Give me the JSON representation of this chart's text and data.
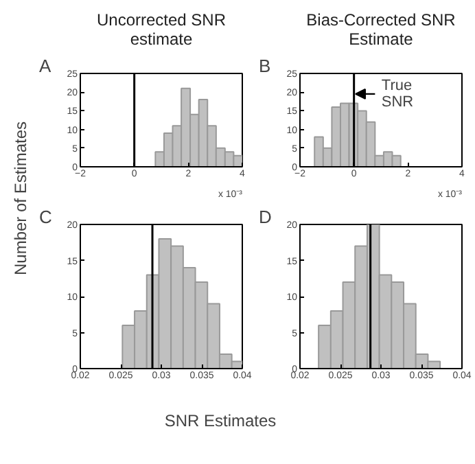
{
  "chart_data": [
    {
      "type": "histogram",
      "title": "Uncorrected SNR estimate",
      "ylabel": "Number of Estimates",
      "color": "#c0c0c0",
      "bins": [
        0.78,
        1.1,
        1.42,
        1.74,
        2.07,
        2.39,
        2.71,
        3.03,
        3.36,
        3.68,
        4.0
      ],
      "values": [
        4,
        9,
        11,
        21,
        14,
        18,
        11,
        5,
        4,
        3
      ],
      "xlim": [
        -2,
        4
      ],
      "xticks": [
        -2,
        0,
        2,
        4
      ],
      "ylim": [
        0,
        25
      ],
      "yticks": [
        0,
        5,
        10,
        15,
        20,
        25
      ],
      "ref_lines": [
        {
          "axis": "x",
          "value": 0,
          "color": "#000000"
        }
      ],
      "annotations": [
        "A",
        "x 10⁻³"
      ],
      "grid": false
    },
    {
      "type": "histogram",
      "title": "Bias-Corrected SNR Estimate",
      "color": "#c0c0c0",
      "bins": [
        -1.46,
        -1.14,
        -0.82,
        -0.5,
        -0.18,
        0.14,
        0.46,
        0.78,
        1.1,
        1.42,
        1.73
      ],
      "values": [
        8,
        5,
        16,
        17,
        17,
        15,
        12,
        3,
        4,
        3
      ],
      "xlim": [
        -2,
        4
      ],
      "xticks": [
        -2,
        0,
        2,
        4
      ],
      "ylim": [
        0,
        25
      ],
      "yticks": [
        0,
        5,
        10,
        15,
        20,
        25
      ],
      "ref_lines": [
        {
          "axis": "x",
          "value": 0,
          "label": "True SNR",
          "color": "#000000"
        }
      ],
      "annotations": [
        "B",
        "x 10⁻³"
      ],
      "grid": false
    },
    {
      "type": "histogram",
      "xlabel": "SNR Estimates",
      "color": "#c0c0c0",
      "bins": [
        0.0252,
        0.0267,
        0.0282,
        0.0297,
        0.0312,
        0.0327,
        0.0342,
        0.0357,
        0.0372,
        0.0387,
        0.04
      ],
      "values": [
        6,
        8,
        13,
        18,
        17,
        14,
        12,
        9,
        2,
        1
      ],
      "xlim": [
        0.02,
        0.04
      ],
      "xticks": [
        {
          "value": 0.02,
          "label": "0.02"
        },
        {
          "value": 0.025,
          "label": "0.025"
        },
        {
          "value": 0.03,
          "label": "0.03"
        },
        {
          "value": 0.035,
          "label": "0.035"
        },
        {
          "value": 0.04,
          "label": "0.04"
        }
      ],
      "ylim": [
        0,
        20
      ],
      "yticks": [
        0,
        5,
        10,
        15,
        20
      ],
      "ref_lines": [
        {
          "axis": "x",
          "value": 0.0289,
          "color": "#000000"
        }
      ],
      "annotations": [
        "C"
      ],
      "grid": false
    },
    {
      "type": "histogram",
      "color": "#c0c0c0",
      "bins": [
        0.0223,
        0.0238,
        0.0253,
        0.0268,
        0.0283,
        0.0298,
        0.0313,
        0.0328,
        0.0343,
        0.0358,
        0.0373
      ],
      "values": [
        6,
        8,
        12,
        17,
        20,
        13,
        12,
        9,
        2,
        1
      ],
      "xlim": [
        0.02,
        0.04
      ],
      "xticks": [
        {
          "value": 0.02,
          "label": "0.02"
        },
        {
          "value": 0.025,
          "label": "0.025"
        },
        {
          "value": 0.03,
          "label": "0.03"
        },
        {
          "value": 0.035,
          "label": "0.035"
        },
        {
          "value": 0.04,
          "label": "0.04"
        }
      ],
      "ylim": [
        0,
        20
      ],
      "yticks": [
        0,
        5,
        10,
        15,
        20
      ],
      "ref_lines": [
        {
          "axis": "x",
          "value": 0.0287,
          "color": "#000000"
        }
      ],
      "annotations": [
        "D"
      ],
      "grid": false
    }
  ]
}
